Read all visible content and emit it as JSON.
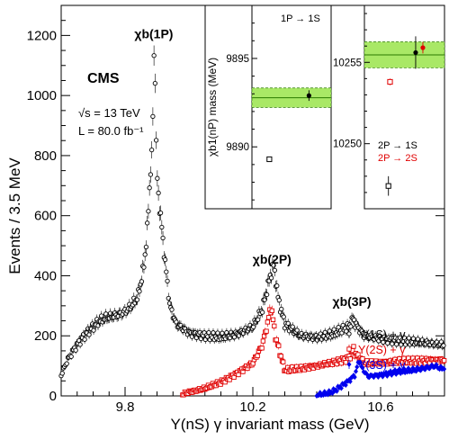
{
  "chart_data": {
    "type": "scatter",
    "xlabel": "Υ(nS) γ  invariant mass (GeV)",
    "ylabel": "Events / 3.5 MeV",
    "xlim": [
      9.6,
      10.8
    ],
    "ylim": [
      0,
      1300
    ],
    "x_ticks": [
      9.8,
      10.2,
      10.6
    ],
    "y_ticks": [
      0,
      200,
      400,
      600,
      800,
      1000,
      1200
    ],
    "experiment": "CMS",
    "energy_label": "√s = 13 TeV",
    "lumi_label": "L = 80.0 fb⁻¹",
    "peak_labels": [
      {
        "text": "χb(1P)",
        "x": 9.89,
        "y": 1190
      },
      {
        "text": "χb(2P)",
        "x": 10.26,
        "y": 440
      },
      {
        "text": "χb(3P)",
        "x": 10.51,
        "y": 300
      }
    ],
    "legend_position": "right",
    "series": [
      {
        "name": "Υ(1S) + γ",
        "color": "#000000",
        "marker": "open-circle",
        "points": [
          [
            9.6,
            70
          ],
          [
            9.62,
            120
          ],
          [
            9.64,
            155
          ],
          [
            9.66,
            185
          ],
          [
            9.68,
            210
          ],
          [
            9.7,
            230
          ],
          [
            9.72,
            250
          ],
          [
            9.74,
            260
          ],
          [
            9.76,
            265
          ],
          [
            9.78,
            270
          ],
          [
            9.8,
            280
          ],
          [
            9.82,
            300
          ],
          [
            9.84,
            330
          ],
          [
            9.85,
            380
          ],
          [
            9.86,
            440
          ],
          [
            9.87,
            560
          ],
          [
            9.875,
            660
          ],
          [
            9.88,
            760
          ],
          [
            9.885,
            810
          ],
          [
            9.89,
            1120
          ],
          [
            9.893,
            1160
          ],
          [
            9.895,
            980
          ],
          [
            9.898,
            800
          ],
          [
            9.902,
            700
          ],
          [
            9.906,
            650
          ],
          [
            9.91,
            610
          ],
          [
            9.915,
            560
          ],
          [
            9.92,
            500
          ],
          [
            9.925,
            450
          ],
          [
            9.93,
            400
          ],
          [
            9.94,
            300
          ],
          [
            9.96,
            240
          ],
          [
            10.0,
            210
          ],
          [
            10.05,
            200
          ],
          [
            10.1,
            195
          ],
          [
            10.15,
            205
          ],
          [
            10.2,
            230
          ],
          [
            10.23,
            290
          ],
          [
            10.25,
            380
          ],
          [
            10.26,
            420
          ],
          [
            10.265,
            435
          ],
          [
            10.27,
            400
          ],
          [
            10.28,
            320
          ],
          [
            10.3,
            240
          ],
          [
            10.35,
            200
          ],
          [
            10.4,
            195
          ],
          [
            10.45,
            205
          ],
          [
            10.5,
            230
          ],
          [
            10.515,
            260
          ],
          [
            10.52,
            240
          ],
          [
            10.55,
            200
          ],
          [
            10.6,
            190
          ],
          [
            10.65,
            185
          ],
          [
            10.7,
            180
          ],
          [
            10.75,
            175
          ],
          [
            10.8,
            170
          ]
        ]
      },
      {
        "name": "Υ(2S) + γ",
        "color": "#e00000",
        "marker": "open-square",
        "points": [
          [
            9.98,
            5
          ],
          [
            10.0,
            12
          ],
          [
            10.05,
            25
          ],
          [
            10.1,
            45
          ],
          [
            10.15,
            75
          ],
          [
            10.2,
            110
          ],
          [
            10.23,
            170
          ],
          [
            10.25,
            260
          ],
          [
            10.255,
            295
          ],
          [
            10.26,
            280
          ],
          [
            10.27,
            200
          ],
          [
            10.3,
            85
          ],
          [
            10.35,
            90
          ],
          [
            10.4,
            100
          ],
          [
            10.45,
            110
          ],
          [
            10.5,
            125
          ],
          [
            10.51,
            145
          ],
          [
            10.515,
            160
          ],
          [
            10.52,
            140
          ],
          [
            10.55,
            110
          ],
          [
            10.6,
            110
          ],
          [
            10.65,
            115
          ],
          [
            10.7,
            115
          ],
          [
            10.75,
            118
          ],
          [
            10.8,
            120
          ]
        ]
      },
      {
        "name": "Υ(3S) + γ",
        "color": "#0000ee",
        "marker": "filled-diamond",
        "points": [
          [
            10.4,
            3
          ],
          [
            10.42,
            6
          ],
          [
            10.44,
            10
          ],
          [
            10.46,
            20
          ],
          [
            10.48,
            35
          ],
          [
            10.5,
            50
          ],
          [
            10.52,
            70
          ],
          [
            10.53,
            110
          ],
          [
            10.535,
            120
          ],
          [
            10.54,
            95
          ],
          [
            10.56,
            65
          ],
          [
            10.6,
            70
          ],
          [
            10.65,
            80
          ],
          [
            10.7,
            85
          ],
          [
            10.75,
            95
          ],
          [
            10.77,
            100
          ],
          [
            10.79,
            90
          ],
          [
            10.8,
            95
          ]
        ]
      }
    ],
    "insets": [
      {
        "ylabel": "χb1(nP) mass (MeV)",
        "ylim": [
          9886.5,
          9898
        ],
        "y_ticks": [
          9890,
          9895
        ],
        "band_center": 9892.78,
        "band_halfwidth": 0.4,
        "band_halfwidth_outer": 0.55,
        "label": "1P → 1S",
        "points": [
          {
            "name": "1P measurement",
            "y": 9892.9,
            "err": 0.3,
            "marker": "filled-circle",
            "color": "#000000",
            "xpos": 0.72
          },
          {
            "name": "1P reference",
            "y": 9889.3,
            "err": 0.15,
            "marker": "open-square",
            "color": "#000000",
            "xpos": 0.22
          }
        ]
      },
      {
        "ylim": [
          10246,
          10258.5
        ],
        "y_ticks": [
          10250,
          10255
        ],
        "band_center": 10255.46,
        "band_halfwidth": 0.6,
        "band_halfwidth_outer": 0.8,
        "labels": [
          {
            "text": "2P → 1S",
            "color": "#000000"
          },
          {
            "text": "2P → 2S",
            "color": "#e00000"
          }
        ],
        "points": [
          {
            "name": "2P-1S",
            "y": 10255.6,
            "err": 1.0,
            "marker": "filled-circle",
            "color": "#000000",
            "xpos": 0.64
          },
          {
            "name": "2P-2S",
            "y": 10255.9,
            "err": 0.35,
            "marker": "filled-circle",
            "color": "#e00000",
            "xpos": 0.73
          },
          {
            "name": "2S ref",
            "y": 10253.8,
            "err": 0.2,
            "marker": "open-square",
            "color": "#e00000",
            "xpos": 0.32
          },
          {
            "name": "1S ref",
            "y": 10247.4,
            "err": 0.6,
            "marker": "open-square",
            "color": "#000000",
            "xpos": 0.3
          }
        ]
      }
    ]
  }
}
